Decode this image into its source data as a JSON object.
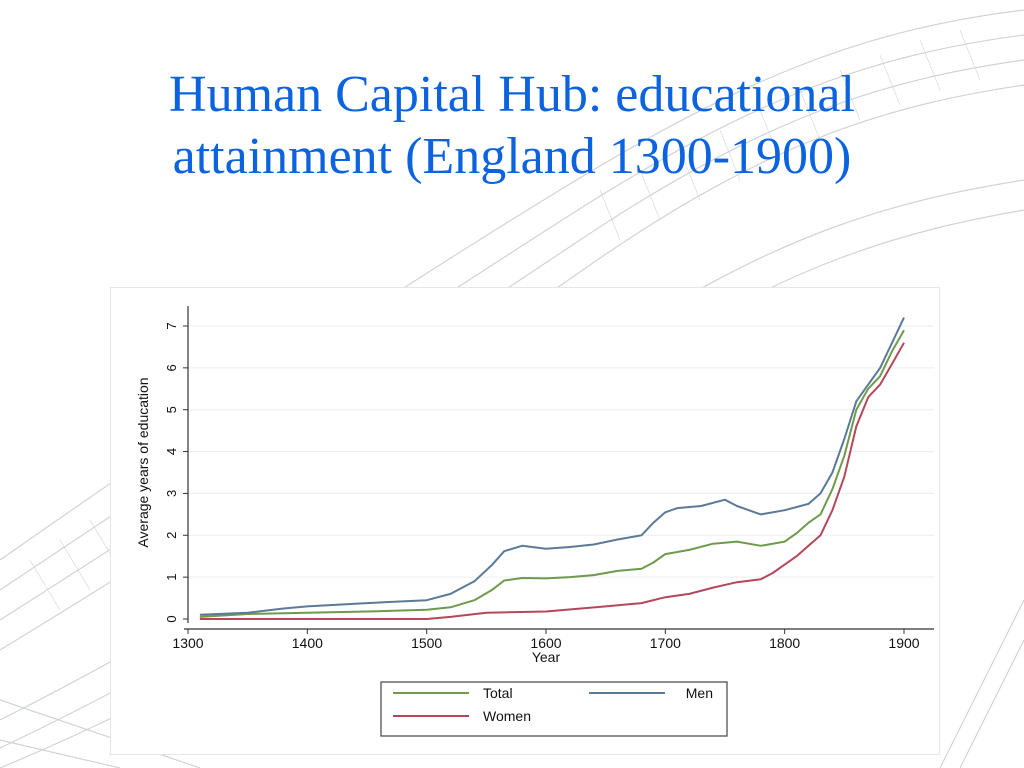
{
  "slide": {
    "title_line1": "Human Capital Hub: educational",
    "title_line2": "attainment (England 1300-1900)"
  },
  "colors": {
    "title": "#0b63e0",
    "total": "#6e9a4c",
    "men": "#5b7a97",
    "women": "#b5475a",
    "background_lines": "#c7ccd1"
  },
  "chart_data": {
    "type": "line",
    "xlabel": "Year",
    "ylabel": "Average years of education",
    "xlim": [
      1300,
      1900
    ],
    "ylim": [
      0,
      7
    ],
    "xticks": [
      1300,
      1400,
      1500,
      1600,
      1700,
      1800,
      1900
    ],
    "yticks": [
      0,
      1,
      2,
      3,
      4,
      5,
      6,
      7
    ],
    "grid": "horizontal",
    "legend_position": "bottom",
    "series": [
      {
        "name": "Total",
        "color": "#6e9a4c",
        "points": [
          [
            1310,
            0.05
          ],
          [
            1350,
            0.12
          ],
          [
            1400,
            0.15
          ],
          [
            1450,
            0.18
          ],
          [
            1500,
            0.22
          ],
          [
            1520,
            0.28
          ],
          [
            1540,
            0.45
          ],
          [
            1555,
            0.7
          ],
          [
            1565,
            0.92
          ],
          [
            1580,
            0.98
          ],
          [
            1600,
            0.97
          ],
          [
            1620,
            1.0
          ],
          [
            1640,
            1.05
          ],
          [
            1660,
            1.15
          ],
          [
            1680,
            1.2
          ],
          [
            1690,
            1.35
          ],
          [
            1700,
            1.55
          ],
          [
            1720,
            1.65
          ],
          [
            1740,
            1.8
          ],
          [
            1760,
            1.85
          ],
          [
            1780,
            1.75
          ],
          [
            1800,
            1.85
          ],
          [
            1810,
            2.05
          ],
          [
            1820,
            2.3
          ],
          [
            1830,
            2.5
          ],
          [
            1840,
            3.1
          ],
          [
            1850,
            3.9
          ],
          [
            1860,
            5.0
          ],
          [
            1870,
            5.5
          ],
          [
            1880,
            5.8
          ],
          [
            1890,
            6.4
          ],
          [
            1900,
            6.9
          ]
        ]
      },
      {
        "name": "Men",
        "color": "#5b7a97",
        "points": [
          [
            1310,
            0.1
          ],
          [
            1350,
            0.15
          ],
          [
            1380,
            0.25
          ],
          [
            1400,
            0.3
          ],
          [
            1450,
            0.38
          ],
          [
            1500,
            0.45
          ],
          [
            1520,
            0.6
          ],
          [
            1540,
            0.9
          ],
          [
            1555,
            1.3
          ],
          [
            1565,
            1.62
          ],
          [
            1580,
            1.75
          ],
          [
            1600,
            1.68
          ],
          [
            1620,
            1.72
          ],
          [
            1640,
            1.78
          ],
          [
            1660,
            1.9
          ],
          [
            1680,
            2.0
          ],
          [
            1690,
            2.3
          ],
          [
            1700,
            2.55
          ],
          [
            1710,
            2.65
          ],
          [
            1730,
            2.7
          ],
          [
            1750,
            2.85
          ],
          [
            1760,
            2.7
          ],
          [
            1780,
            2.5
          ],
          [
            1800,
            2.6
          ],
          [
            1820,
            2.75
          ],
          [
            1830,
            3.0
          ],
          [
            1840,
            3.5
          ],
          [
            1850,
            4.3
          ],
          [
            1860,
            5.2
          ],
          [
            1870,
            5.6
          ],
          [
            1880,
            6.0
          ],
          [
            1890,
            6.6
          ],
          [
            1900,
            7.2
          ]
        ]
      },
      {
        "name": "Women",
        "color": "#b5475a",
        "points": [
          [
            1310,
            0.0
          ],
          [
            1400,
            0.0
          ],
          [
            1450,
            0.0
          ],
          [
            1500,
            0.0
          ],
          [
            1520,
            0.05
          ],
          [
            1550,
            0.15
          ],
          [
            1600,
            0.18
          ],
          [
            1650,
            0.3
          ],
          [
            1680,
            0.38
          ],
          [
            1700,
            0.52
          ],
          [
            1720,
            0.6
          ],
          [
            1740,
            0.75
          ],
          [
            1760,
            0.88
          ],
          [
            1780,
            0.95
          ],
          [
            1790,
            1.1
          ],
          [
            1800,
            1.3
          ],
          [
            1810,
            1.5
          ],
          [
            1820,
            1.75
          ],
          [
            1830,
            2.0
          ],
          [
            1840,
            2.6
          ],
          [
            1850,
            3.4
          ],
          [
            1860,
            4.6
          ],
          [
            1870,
            5.3
          ],
          [
            1880,
            5.6
          ],
          [
            1890,
            6.1
          ],
          [
            1900,
            6.6
          ]
        ]
      }
    ]
  }
}
